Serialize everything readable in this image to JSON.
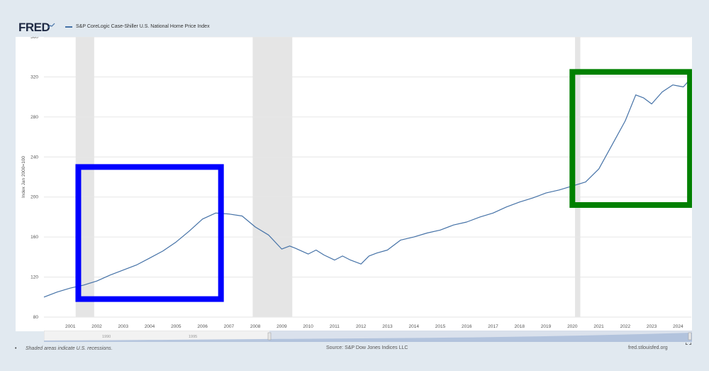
{
  "header": {
    "logo_text": "FRED",
    "legend_label": "S&P CoreLogic Case-Shiller U.S. National Home Price Index"
  },
  "footer": {
    "note": "Shaded areas indicate U.S. recessions.",
    "source": "Source: S&P Dow Jones Indices LLC",
    "url": "fred.stlouisfed.org"
  },
  "colors": {
    "line": "#4572a7",
    "recession": "#e5e5e5",
    "box_blue": "#0000ff",
    "box_green": "#008000",
    "background": "#e1e9f0"
  },
  "chart_data": {
    "type": "line",
    "title": "",
    "xlabel": "",
    "ylabel": "Index Jan 2000=100",
    "xlim": [
      2000.0,
      2024.5
    ],
    "ylim": [
      80,
      360
    ],
    "y_ticks": [
      80,
      120,
      160,
      200,
      240,
      280,
      320,
      360
    ],
    "x_ticks": [
      2001,
      2002,
      2003,
      2004,
      2005,
      2006,
      2007,
      2008,
      2009,
      2010,
      2011,
      2012,
      2013,
      2014,
      2015,
      2016,
      2017,
      2018,
      2019,
      2020,
      2021,
      2022,
      2023,
      2024
    ],
    "grid": true,
    "recessions": [
      [
        2001.2,
        2001.9
      ],
      [
        2007.9,
        2009.4
      ],
      [
        2020.1,
        2020.3
      ]
    ],
    "series": [
      {
        "name": "S&P CoreLogic Case-Shiller U.S. National Home Price Index",
        "x": [
          2000.0,
          2000.5,
          2001.0,
          2001.5,
          2002.0,
          2002.5,
          2003.0,
          2003.5,
          2004.0,
          2004.5,
          2005.0,
          2005.5,
          2006.0,
          2006.5,
          2007.0,
          2007.5,
          2008.0,
          2008.5,
          2009.0,
          2009.3,
          2009.5,
          2010.0,
          2010.3,
          2010.6,
          2011.0,
          2011.3,
          2011.6,
          2012.0,
          2012.3,
          2012.6,
          2013.0,
          2013.5,
          2014.0,
          2014.5,
          2015.0,
          2015.5,
          2016.0,
          2016.5,
          2017.0,
          2017.5,
          2018.0,
          2018.5,
          2019.0,
          2019.5,
          2020.0,
          2020.5,
          2021.0,
          2021.5,
          2022.0,
          2022.4,
          2022.7,
          2023.0,
          2023.4,
          2023.8,
          2024.0,
          2024.2,
          2024.4
        ],
        "values": [
          100,
          105,
          109,
          112,
          116,
          122,
          127,
          132,
          139,
          146,
          155,
          166,
          178,
          184,
          183,
          181,
          170,
          162,
          148,
          151,
          149,
          143,
          147,
          142,
          137,
          141,
          137,
          133,
          141,
          144,
          147,
          157,
          160,
          164,
          167,
          172,
          175,
          180,
          184,
          190,
          195,
          199,
          204,
          207,
          211,
          215,
          228,
          252,
          276,
          302,
          299,
          293,
          305,
          312,
          311,
          310,
          316
        ]
      }
    ]
  },
  "overlay_boxes": [
    {
      "name": "blue-box",
      "color": "#0000ff",
      "x0": 2001.3,
      "x1": 2006.7,
      "y0": 98,
      "y1": 230
    },
    {
      "name": "green-box",
      "color": "#008000",
      "x0": 2020.0,
      "x1": 2024.45,
      "y0": 192,
      "y1": 325
    }
  ],
  "navigator": {
    "labels": [
      "1990",
      "1995"
    ]
  }
}
